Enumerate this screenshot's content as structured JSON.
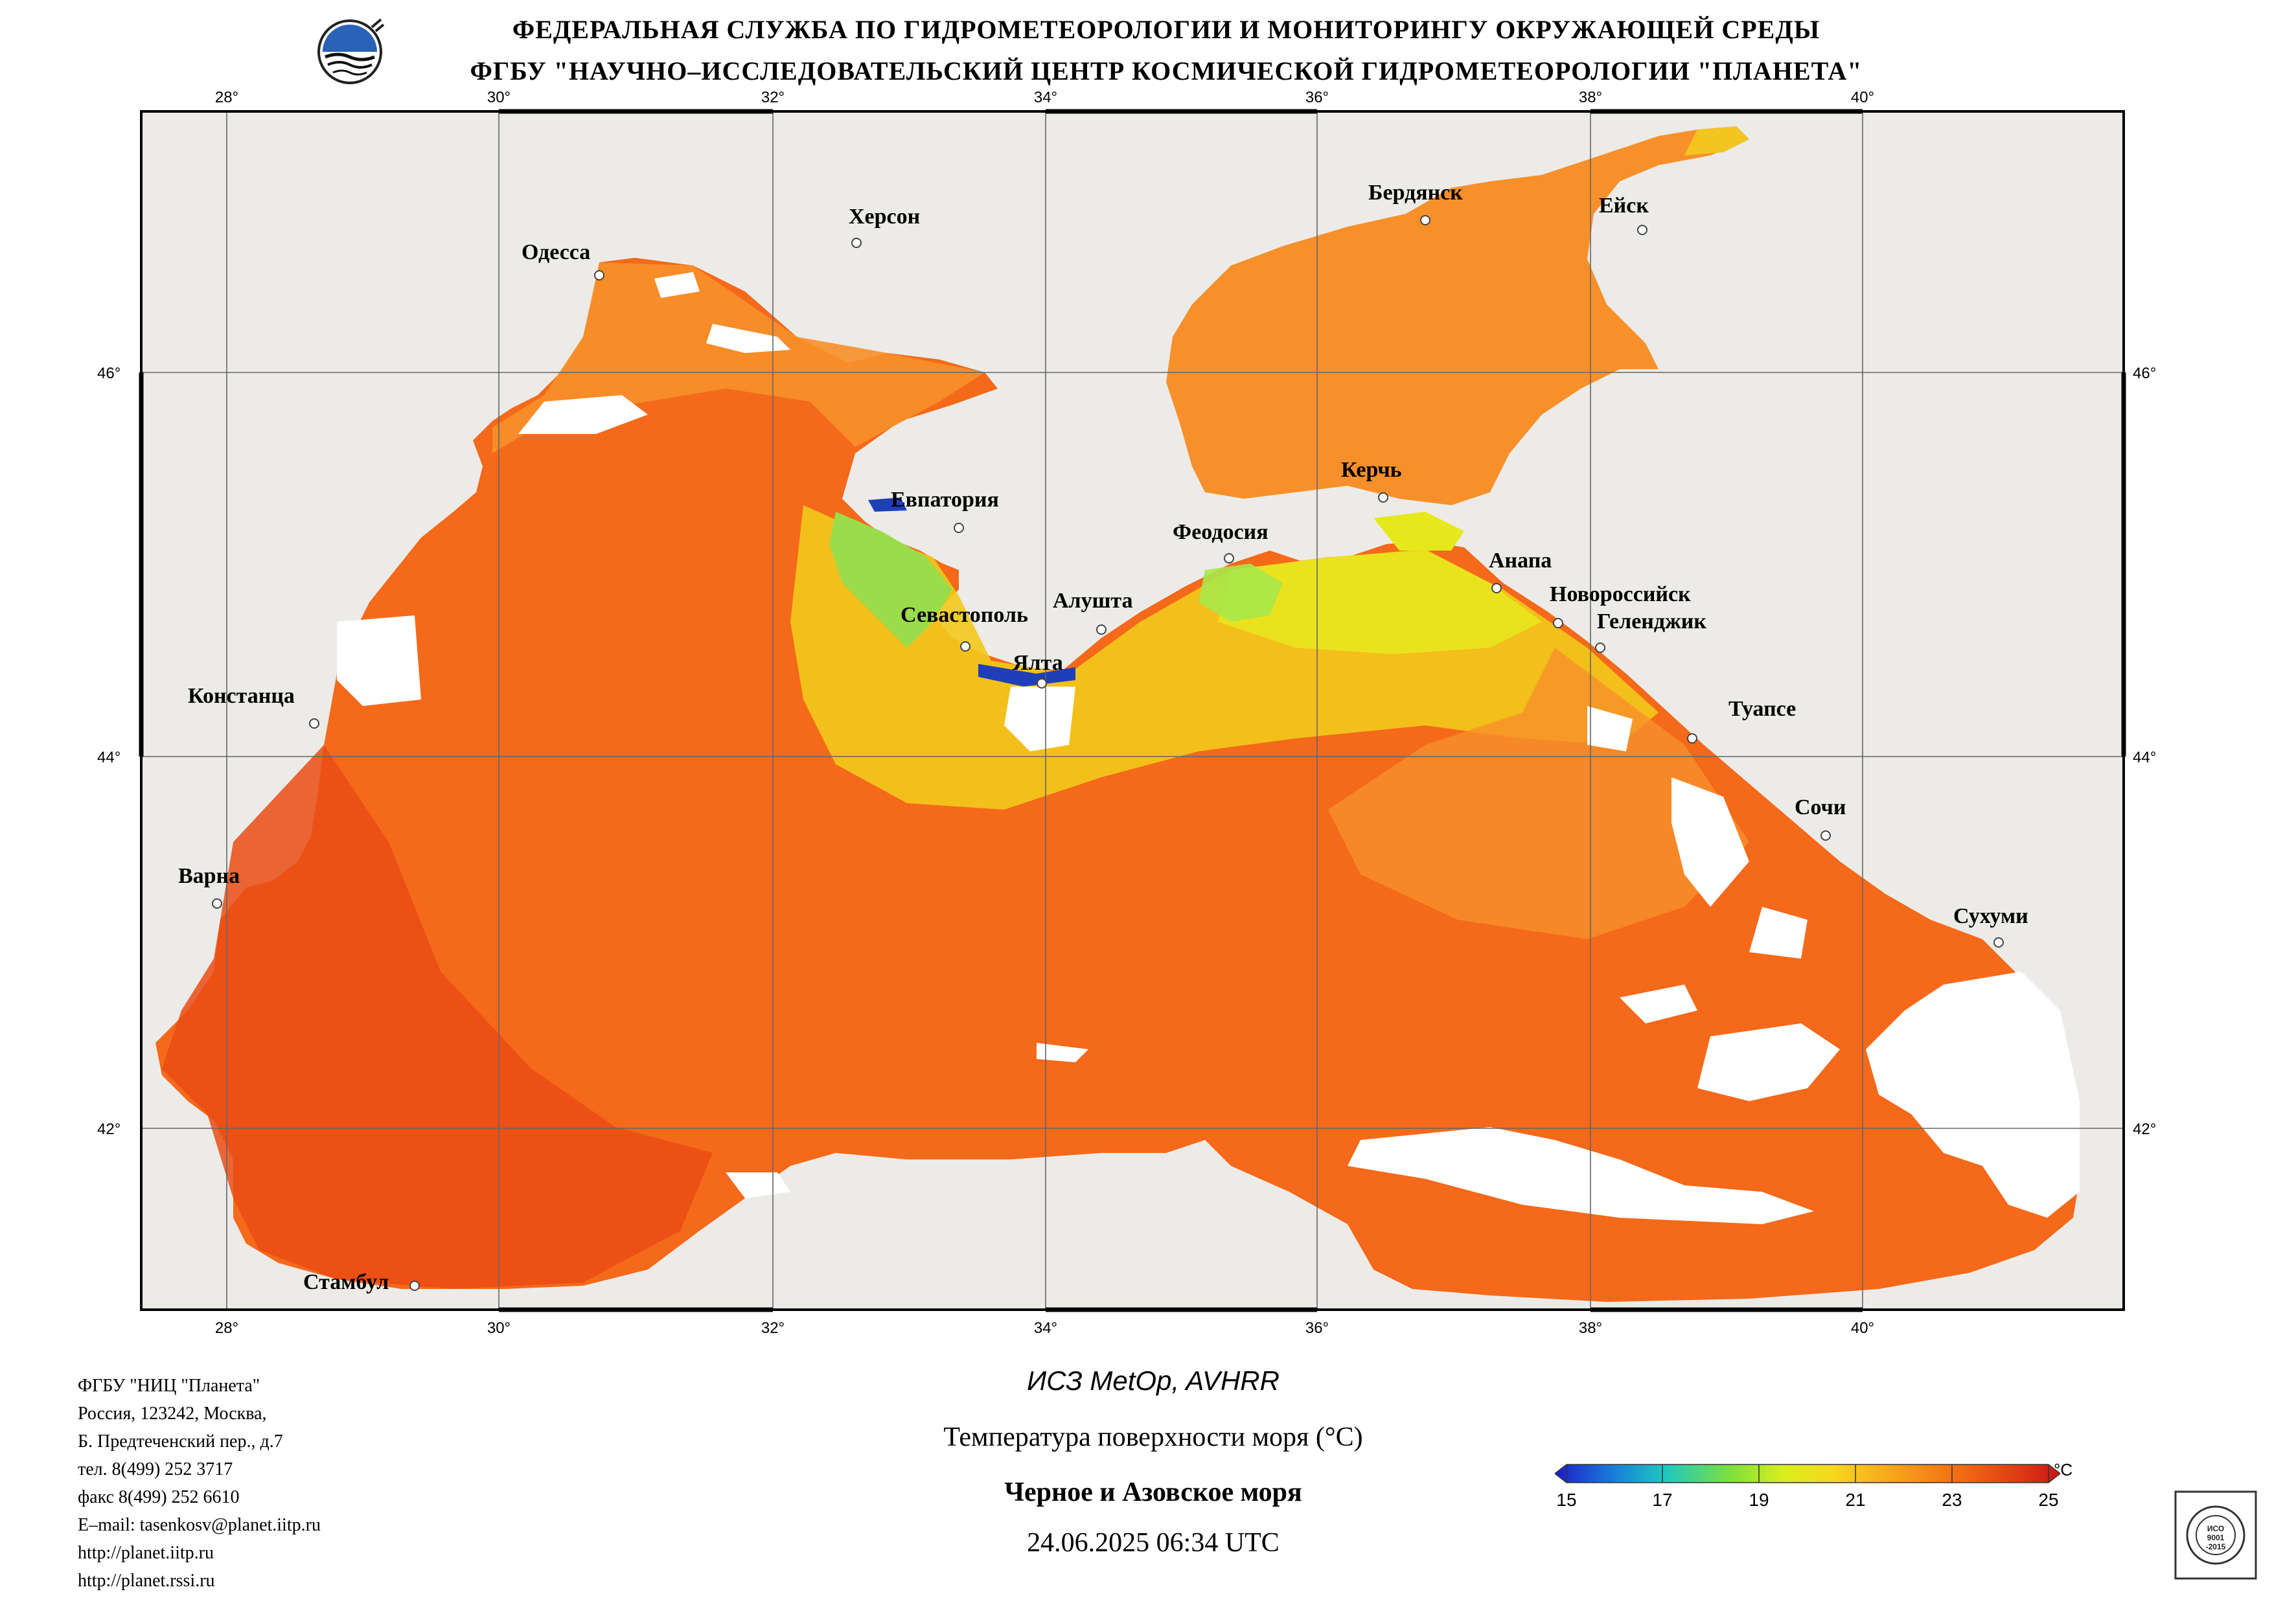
{
  "header": {
    "line1": "ФЕДЕРАЛЬНАЯ СЛУЖБА ПО ГИДРОМЕТЕОРОЛОГИИ И МОНИТОРИНГУ ОКРУЖАЮЩЕЙ СРЕДЫ",
    "line2": "ФГБУ \"НАУЧНО–ИССЛЕДОВАТЕЛЬСКИЙ ЦЕНТР КОСМИЧЕСКОЙ ГИДРОМЕТЕОРОЛОГИИ \"ПЛАНЕТА\""
  },
  "map": {
    "lon_labels": [
      "28°",
      "30°",
      "32°",
      "34°",
      "36°",
      "38°",
      "40°"
    ],
    "lat_labels": [
      "46°",
      "44°",
      "42°"
    ],
    "cities": [
      "Одесса",
      "Херсон",
      "Бердянск",
      "Ейск",
      "Евпатория",
      "Керчь",
      "Феодосия",
      "Анапа",
      "Новороссийск",
      "Геленджик",
      "Алушта",
      "Севастополь",
      "Ялта",
      "Констанца",
      "Туапсе",
      "Сочи",
      "Варна",
      "Сухуми",
      "Стамбул"
    ],
    "colors": {
      "land": "#ecebe7",
      "sea_warm": "#f4691a",
      "sea_mid": "#f6a21c",
      "sea_cool": "#e6e81c",
      "cloud": "#ffffff"
    }
  },
  "footer": {
    "org_lines": [
      "ФГБУ \"НИЦ \"Планета\"",
      "Россия, 123242, Москва,",
      "Б. Предтеченский пер., д.7",
      "тел. 8(499) 252 3717",
      "факс 8(499) 252 6610",
      "E–mail: tasenkosv@planet.iitp.ru",
      "http://planet.iitp.ru",
      "http://planet.rssi.ru"
    ],
    "satellite": "ИСЗ MetOp, AVHRR",
    "product": "Температура поверхности моря (°C)",
    "region": "Черное и Азовское моря",
    "datetime": "24.06.2025 06:34 UTC"
  },
  "colorbar": {
    "unit": "°C",
    "ticks": [
      "15",
      "17",
      "19",
      "21",
      "23",
      "25"
    ],
    "colors": [
      "#1d1cc9",
      "#1dc9c0",
      "#b8ee2a",
      "#f2ef1c",
      "#f7a51a",
      "#f05a14",
      "#d01616"
    ]
  },
  "cert": {
    "text": "ИСО 9001 -2015"
  }
}
